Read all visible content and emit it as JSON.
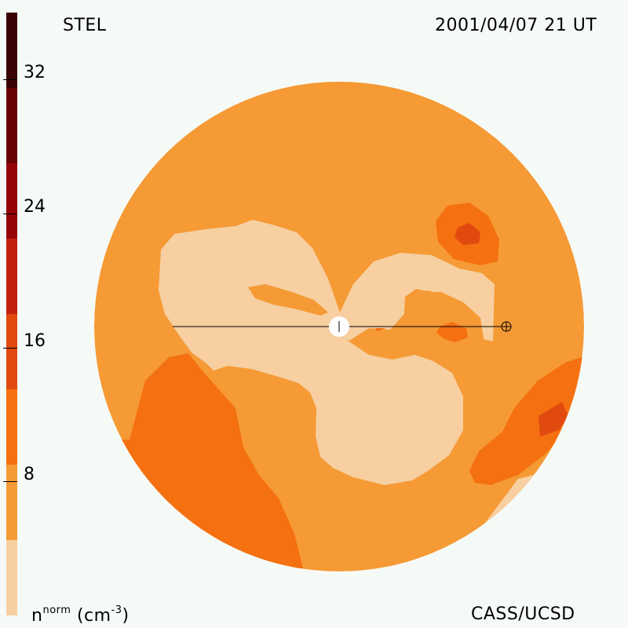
{
  "header": {
    "observatory": "STEL",
    "datetime": "2001/04/07 21 UT"
  },
  "footer": {
    "credit": "CASS/UCSD"
  },
  "colorbar": {
    "ticks": [
      "32",
      "24",
      "16",
      "8"
    ],
    "unit_base": "n",
    "unit_sup": "norm",
    "unit_text": "(cm",
    "unit_exp": "-3",
    "unit_close": ")",
    "colors": [
      "#f7cfa0",
      "#f59a35",
      "#f57010",
      "#e04a0e",
      "#c4200e",
      "#950505",
      "#680303",
      "#3a0202"
    ]
  },
  "map": {
    "colors": {
      "level_a": "#f7cfa0",
      "level_b": "#f59a35",
      "level_c": "#f57010",
      "level_d": "#e04a0e"
    },
    "markers": [
      "sun-marker",
      "earth-marker"
    ]
  }
}
